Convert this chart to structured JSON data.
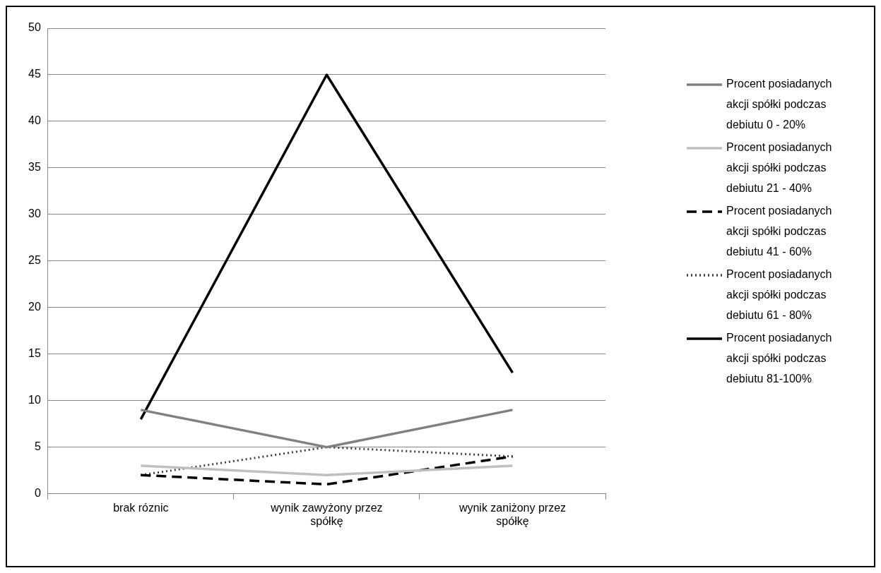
{
  "chart_data": {
    "type": "line",
    "categories": [
      "brak róznic",
      "wynik zawyżony przez spółkę",
      "wynik zaniżony przez spółkę"
    ],
    "series": [
      {
        "name": "Procent posiadanych akcji spółki podczas debiutu 0 - 20%",
        "color": "#808080",
        "values": [
          9,
          5,
          9
        ],
        "line_style": "solid"
      },
      {
        "name": "Procent posiadanych akcji spółki podczas debiutu 21 - 40%",
        "color": "#bfbfbf",
        "values": [
          3,
          2,
          3
        ],
        "line_style": "solid"
      },
      {
        "name": "Procent posiadanych akcji spółki podczas debiutu 41 - 60%",
        "color": "#000000",
        "values": [
          2,
          1,
          4
        ],
        "line_style": "dashed"
      },
      {
        "name": "Procent posiadanych akcji spółki podczas debiutu 61 - 80%",
        "color": "#404040",
        "values": [
          2,
          5,
          4
        ],
        "line_style": "dotted"
      },
      {
        "name": "Procent posiadanych akcji spółki podczas debiutu 81-100%",
        "color": "#000000",
        "values": [
          8,
          45,
          13
        ],
        "line_style": "solid"
      }
    ],
    "ylim": [
      0,
      50
    ],
    "yticks": [
      0,
      5,
      10,
      15,
      20,
      25,
      30,
      35,
      40,
      45,
      50
    ],
    "grid": "y",
    "legend": "right",
    "marker": "none"
  }
}
